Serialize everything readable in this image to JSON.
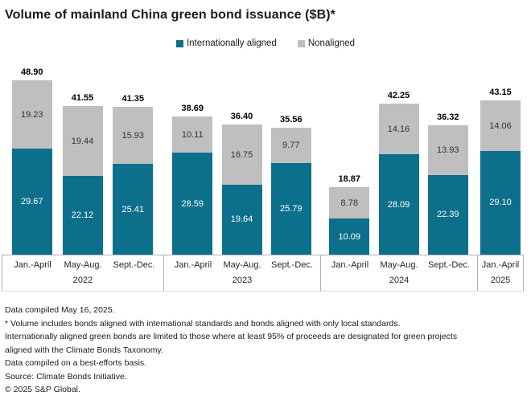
{
  "title": "Volume of mainland China green bond issuance ($B)*",
  "colors": {
    "aligned": "#0c6f8c",
    "nonaligned": "#bfbfbf",
    "axis_border": "#b0b0b0",
    "total_label": "#000000",
    "background": "#ffffff"
  },
  "chart_data": {
    "type": "bar",
    "stacked": true,
    "title": "Volume of mainland China green bond issuance ($B)*",
    "xlabel": "",
    "ylabel": "",
    "grid": false,
    "legend_position": "top-center",
    "ylim": [
      0,
      52
    ],
    "categories": [
      "Jan.-April",
      "May-Aug.",
      "Sept.-Dec.",
      "Jan.-April",
      "May-Aug.",
      "Sept.-Dec.",
      "Jan.-April",
      "May-Aug.",
      "Sept.-Dec.",
      "Jan.-April"
    ],
    "groups": [
      {
        "year": "2022",
        "bars": 3
      },
      {
        "year": "2023",
        "bars": 3
      },
      {
        "year": "2024",
        "bars": 3
      },
      {
        "year": "2025",
        "bars": 1
      }
    ],
    "series": [
      {
        "name": "Internationally aligned",
        "color": "#0c6f8c",
        "values": [
          29.67,
          22.12,
          25.41,
          28.59,
          19.64,
          25.79,
          10.09,
          28.09,
          22.39,
          29.1
        ]
      },
      {
        "name": "Nonaligned",
        "color": "#bfbfbf",
        "values": [
          19.23,
          19.44,
          15.93,
          10.11,
          16.75,
          9.77,
          8.78,
          14.16,
          13.93,
          14.06
        ]
      }
    ],
    "totals": [
      48.9,
      41.55,
      41.35,
      38.69,
      36.4,
      35.56,
      18.87,
      42.25,
      36.32,
      43.15
    ]
  },
  "footnotes": [
    "Data compiled May 16, 2025.",
    "* Volume includes bonds aligned with international standards and bonds aligned with only local standards.",
    "Internationally aligned green bonds are limited to those where at least 95% of proceeds are designated for green projects",
    "aligned with the Climate Bonds Taxonomy.",
    "Data compiled on a best-efforts basis.",
    "Source: Climate Bonds Initiative.",
    "© 2025 S&P Global."
  ]
}
